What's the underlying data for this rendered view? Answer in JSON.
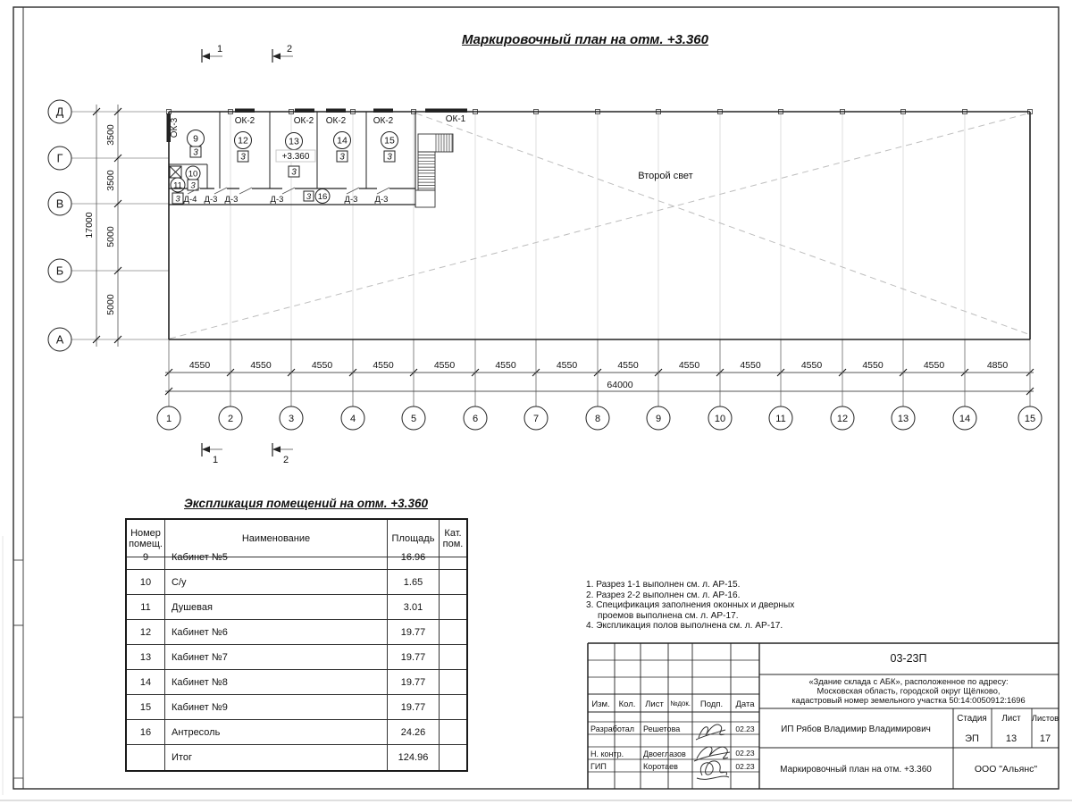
{
  "sheet": {
    "title": "Маркировочный план на отм. +3.360",
    "table_title": "Экспликация помещений на отм. +3.360"
  },
  "section_markers": {
    "m1": "1",
    "m2": "2"
  },
  "plan": {
    "row_axes": [
      "Д",
      "Г",
      "В",
      "Б",
      "А"
    ],
    "row_dims": [
      "3500",
      "3500",
      "5000",
      "5000"
    ],
    "row_total": "17000",
    "col_axes": [
      "1",
      "2",
      "3",
      "4",
      "5",
      "6",
      "7",
      "8",
      "9",
      "10",
      "11",
      "12",
      "13",
      "14",
      "15"
    ],
    "col_spans": [
      "4550",
      "4550",
      "4550",
      "4550",
      "4550",
      "4550",
      "4550",
      "4550",
      "4550",
      "4550",
      "4550",
      "4550",
      "4550",
      "4850"
    ],
    "col_total": "64000",
    "windows": {
      "ok3": "ОК-3",
      "ok2": "ОК-2",
      "ok1": "ОК-1"
    },
    "elevation": "+3.360",
    "second_light": "Второй свет",
    "cat_label": "3",
    "rooms": [
      {
        "num": "9"
      },
      {
        "num": "12"
      },
      {
        "num": "13"
      },
      {
        "num": "14"
      },
      {
        "num": "15"
      }
    ],
    "small_rooms": {
      "r10": "10",
      "r11": "11",
      "r16": "16"
    },
    "doors": [
      "Д-4",
      "Д-3",
      "Д-3",
      "Д-3",
      "Д-3",
      "Д-3"
    ]
  },
  "table": {
    "headers": {
      "num": "Номер\nпомещ.",
      "name": "Наименование",
      "area": "Площадь",
      "cat": "Кат.\nпом."
    },
    "rows": [
      {
        "num": "9",
        "name": "Кабинет №5",
        "area": "16.96",
        "cat": ""
      },
      {
        "num": "10",
        "name": "С/у",
        "area": "1.65",
        "cat": ""
      },
      {
        "num": "11",
        "name": "Душевая",
        "area": "3.01",
        "cat": ""
      },
      {
        "num": "12",
        "name": "Кабинет №6",
        "area": "19.77",
        "cat": ""
      },
      {
        "num": "13",
        "name": "Кабинет №7",
        "area": "19.77",
        "cat": ""
      },
      {
        "num": "14",
        "name": "Кабинет №8",
        "area": "19.77",
        "cat": ""
      },
      {
        "num": "15",
        "name": "Кабинет №9",
        "area": "19.77",
        "cat": ""
      },
      {
        "num": "16",
        "name": "Антресоль",
        "area": "24.26",
        "cat": ""
      },
      {
        "num": "",
        "name": "Итог",
        "area": "124.96",
        "cat": ""
      }
    ]
  },
  "notes": [
    "1. Разрез 1-1 выполнен см. л. АР-15.",
    "2. Разрез 2-2 выполнен см. л. АР-16.",
    "3. Спецификация заполнения оконных и дверных проемов выполнена см. л. АР-17.",
    "4. Экспликация полов выполнена см. л. АР-17."
  ],
  "titleblock": {
    "doc_number": "03-23П",
    "address_line1": "«Здание склада с АБК», расположенное по адресу:",
    "address_line2": "Московская область, городской округ Щёлково,",
    "address_line3": "кадастровый номер земельного участка 50:14:0050912:1696",
    "cols": {
      "izm": "Изм.",
      "kol": "Кол.",
      "list": "Лист",
      "ndoc": "№док.",
      "podp": "Подп.",
      "data": "Дата"
    },
    "roles": [
      {
        "role": "Разработал",
        "name": "Решетова",
        "date": "02.23"
      },
      {
        "role": "Н. контр.",
        "name": "Двоеглазов",
        "date": "02.23"
      },
      {
        "role": "ГИП",
        "name": "Коротаев",
        "date": "02.23"
      }
    ],
    "client": "ИП Рябов Владимир Владимирович",
    "stage_label": "Стадия",
    "sheet_label": "Лист",
    "sheets_label": "Листов",
    "stage": "ЭП",
    "sheet_num": "13",
    "sheets_total": "17",
    "drawing_name": "Маркировочный план на отм. +3.360",
    "company": "ООО \"Альянс\""
  }
}
